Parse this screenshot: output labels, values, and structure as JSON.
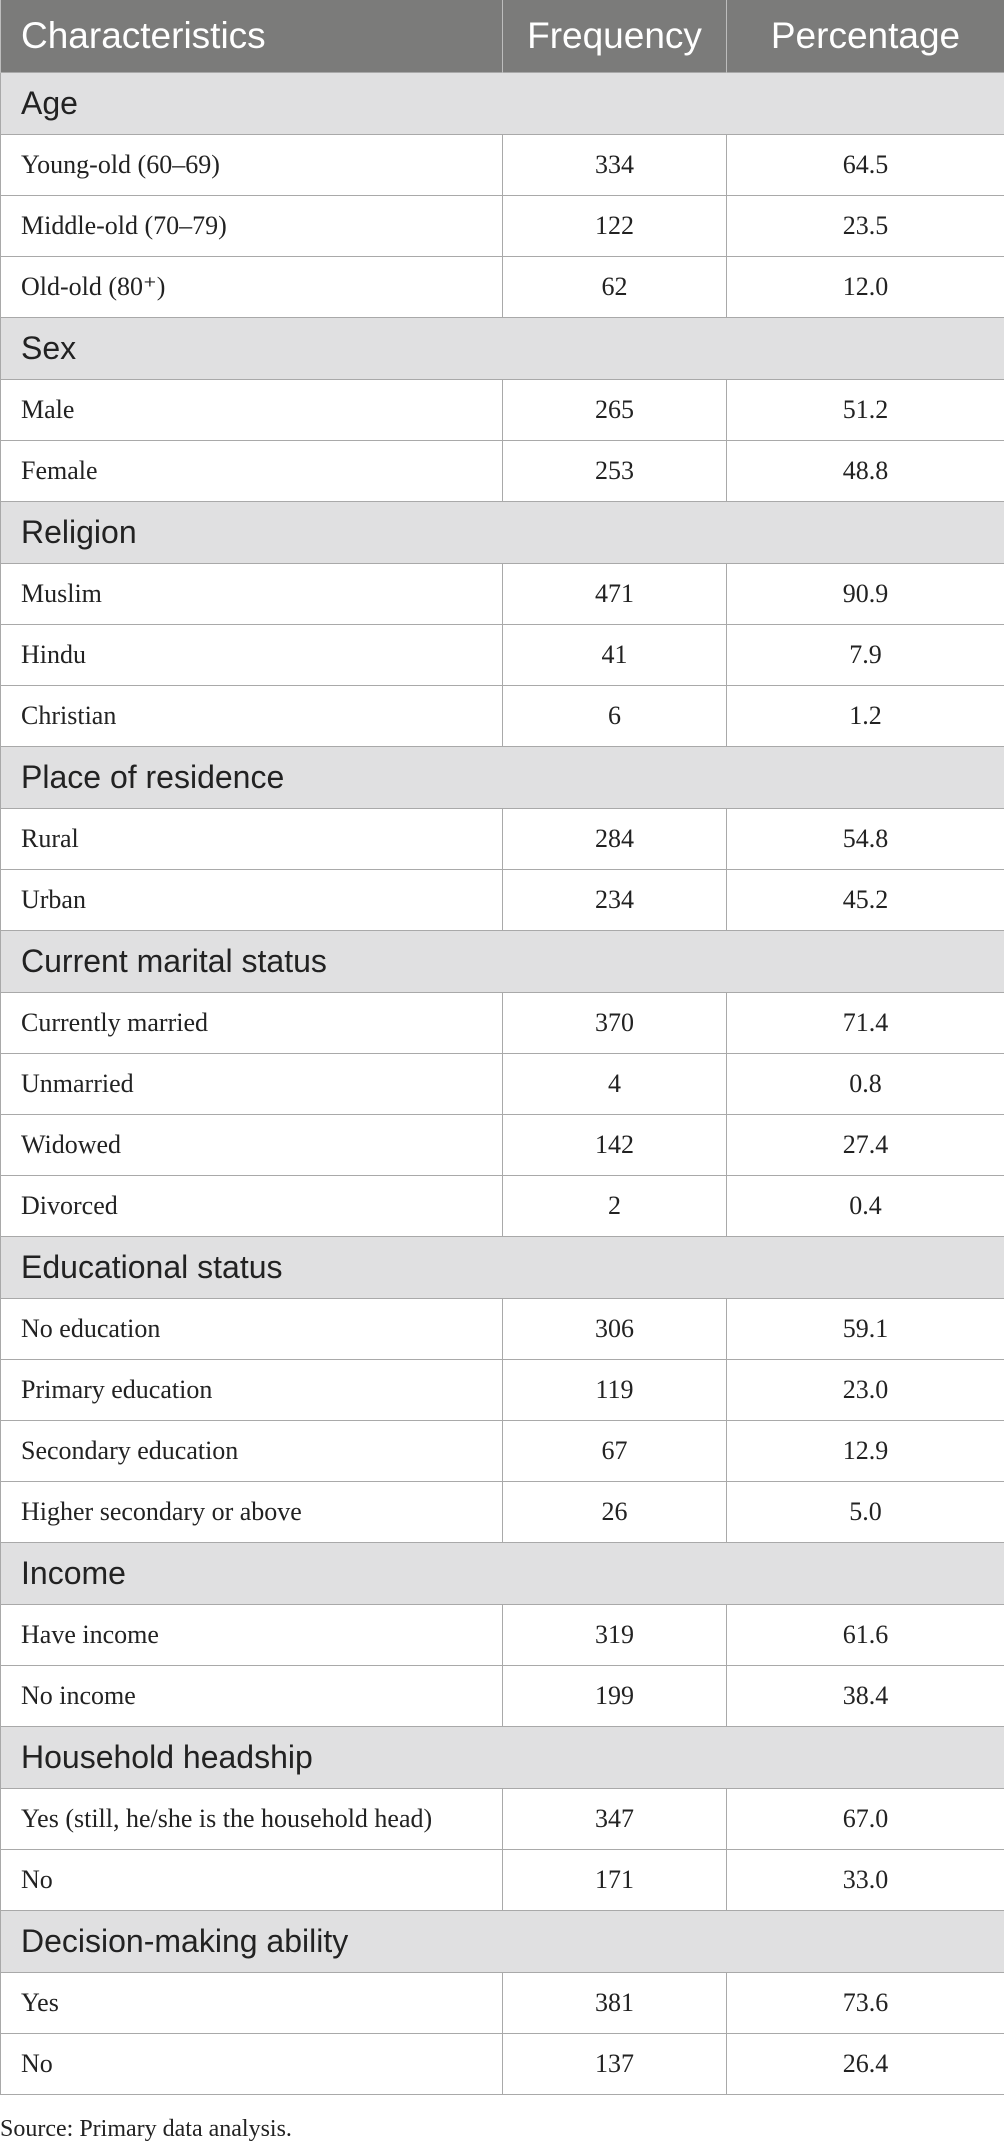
{
  "table": {
    "headers": [
      "Characteristics",
      "Frequency",
      "Percentage"
    ],
    "sections": [
      {
        "title": "Age",
        "rows": [
          {
            "label": "Young-old (60–69)",
            "frequency": "334",
            "percentage": "64.5"
          },
          {
            "label": "Middle-old (70–79)",
            "frequency": "122",
            "percentage": "23.5"
          },
          {
            "label": "Old-old (80⁺)",
            "frequency": "62",
            "percentage": "12.0"
          }
        ]
      },
      {
        "title": "Sex",
        "rows": [
          {
            "label": "Male",
            "frequency": "265",
            "percentage": "51.2"
          },
          {
            "label": "Female",
            "frequency": "253",
            "percentage": "48.8"
          }
        ]
      },
      {
        "title": "Religion",
        "rows": [
          {
            "label": "Muslim",
            "frequency": "471",
            "percentage": "90.9"
          },
          {
            "label": "Hindu",
            "frequency": "41",
            "percentage": "7.9"
          },
          {
            "label": "Christian",
            "frequency": "6",
            "percentage": "1.2"
          }
        ]
      },
      {
        "title": "Place of residence",
        "rows": [
          {
            "label": "Rural",
            "frequency": "284",
            "percentage": "54.8"
          },
          {
            "label": "Urban",
            "frequency": "234",
            "percentage": "45.2"
          }
        ]
      },
      {
        "title": "Current marital status",
        "rows": [
          {
            "label": "Currently married",
            "frequency": "370",
            "percentage": "71.4"
          },
          {
            "label": "Unmarried",
            "frequency": "4",
            "percentage": "0.8"
          },
          {
            "label": "Widowed",
            "frequency": "142",
            "percentage": "27.4"
          },
          {
            "label": "Divorced",
            "frequency": "2",
            "percentage": "0.4"
          }
        ]
      },
      {
        "title": "Educational status",
        "rows": [
          {
            "label": "No education",
            "frequency": "306",
            "percentage": "59.1"
          },
          {
            "label": "Primary education",
            "frequency": "119",
            "percentage": "23.0"
          },
          {
            "label": "Secondary education",
            "frequency": "67",
            "percentage": "12.9"
          },
          {
            "label": "Higher secondary or above",
            "frequency": "26",
            "percentage": "5.0"
          }
        ]
      },
      {
        "title": "Income",
        "rows": [
          {
            "label": "Have income",
            "frequency": "319",
            "percentage": "61.6"
          },
          {
            "label": "No income",
            "frequency": "199",
            "percentage": "38.4"
          }
        ]
      },
      {
        "title": "Household headship",
        "rows": [
          {
            "label": "Yes (still, he/she is the household head)",
            "frequency": "347",
            "percentage": "67.0"
          },
          {
            "label": "No",
            "frequency": "171",
            "percentage": "33.0"
          }
        ]
      },
      {
        "title": "Decision-making ability",
        "rows": [
          {
            "label": "Yes",
            "frequency": "381",
            "percentage": "73.6"
          },
          {
            "label": "No",
            "frequency": "137",
            "percentage": "26.4"
          }
        ]
      }
    ]
  },
  "source_note": "Source: Primary data analysis.",
  "colors": {
    "header_bg": "#7b7b7a",
    "section_bg": "#e0e0e1",
    "border": "#a9a9a9"
  }
}
